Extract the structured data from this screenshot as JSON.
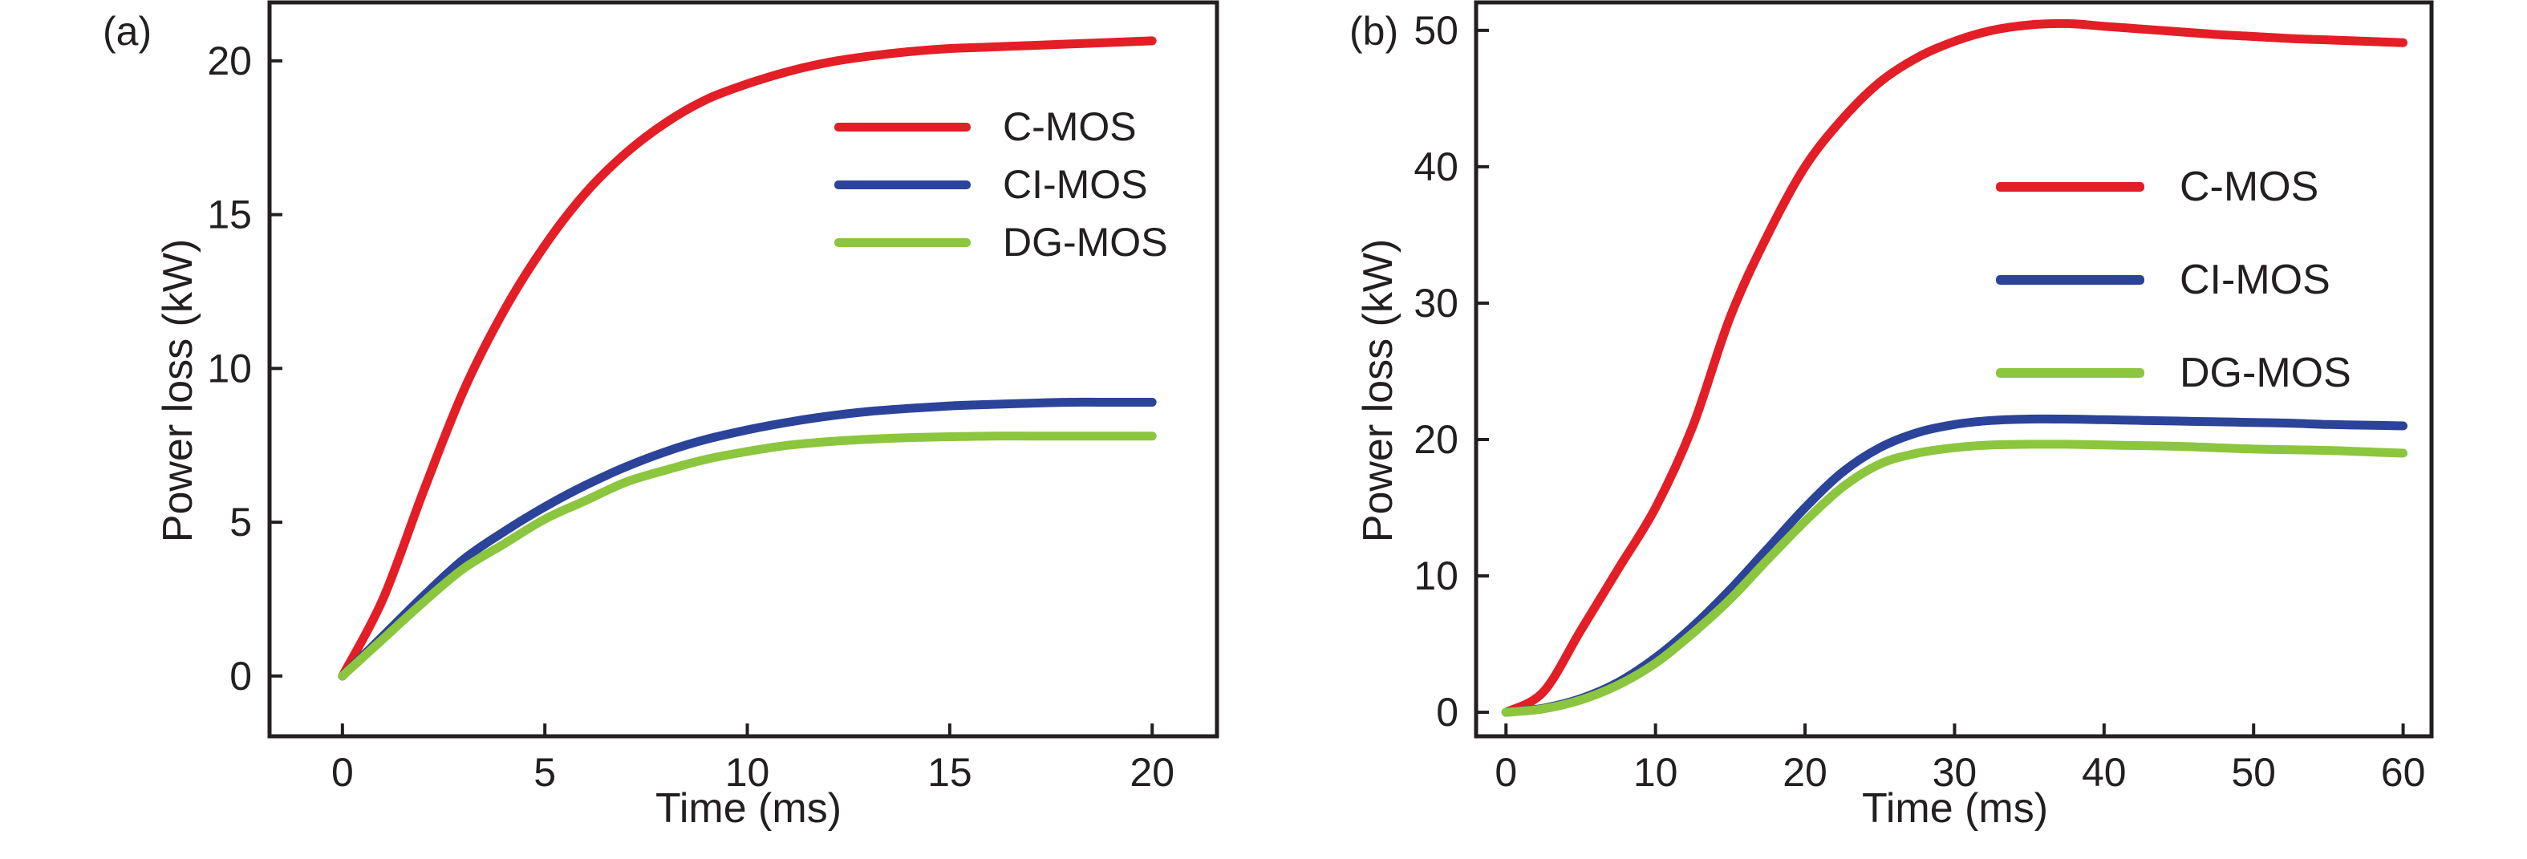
{
  "figure": {
    "background": "#ffffff",
    "axis_color": "#231f20",
    "text_color": "#231f20"
  },
  "chart_data": [
    {
      "type": "line",
      "panel_label": "(a)",
      "xlabel": "Time (ms)",
      "ylabel": "Power loss (kW)",
      "xlim": [
        -1.8,
        21.6
      ],
      "ylim": [
        -1.96,
        21.9
      ],
      "x_ticks": [
        0,
        5,
        10,
        15,
        20
      ],
      "y_ticks": [
        0,
        5,
        10,
        15,
        20
      ],
      "grid": false,
      "legend_position": "upper-right-inside",
      "x": [
        0,
        1,
        2,
        3,
        4,
        5,
        6,
        7,
        8,
        9,
        10,
        11,
        12,
        13,
        14,
        15,
        16,
        17,
        18,
        19,
        20
      ],
      "series": [
        {
          "name": "C-MOS",
          "color": "#e31e26",
          "values": [
            0,
            2.5,
            6.0,
            9.3,
            11.9,
            14.0,
            15.7,
            17.0,
            18.0,
            18.75,
            19.25,
            19.65,
            19.95,
            20.15,
            20.3,
            20.4,
            20.45,
            20.5,
            20.55,
            20.6,
            20.65
          ]
        },
        {
          "name": "CI-MOS",
          "color": "#2b4399",
          "values": [
            0,
            1.3,
            2.6,
            3.8,
            4.7,
            5.5,
            6.2,
            6.8,
            7.3,
            7.7,
            8.0,
            8.25,
            8.45,
            8.6,
            8.7,
            8.78,
            8.83,
            8.87,
            8.9,
            8.9,
            8.9
          ]
        },
        {
          "name": "DG-MOS",
          "color": "#8bc63e",
          "values": [
            0,
            1.2,
            2.4,
            3.5,
            4.3,
            5.1,
            5.7,
            6.3,
            6.7,
            7.05,
            7.3,
            7.5,
            7.62,
            7.7,
            7.75,
            7.78,
            7.8,
            7.8,
            7.8,
            7.8,
            7.8
          ]
        }
      ]
    },
    {
      "type": "line",
      "panel_label": "(b)",
      "xlabel": "Time (ms)",
      "ylabel": "Power loss (kW)",
      "xlim": [
        -2,
        61.9
      ],
      "ylim": [
        -1.76,
        52.05
      ],
      "x_ticks": [
        0,
        10,
        20,
        30,
        40,
        50,
        60
      ],
      "y_ticks": [
        0,
        10,
        20,
        30,
        40,
        50
      ],
      "grid": false,
      "legend_position": "upper-right-inside",
      "x": [
        0,
        2.5,
        5,
        7.5,
        10,
        12.5,
        15,
        17.5,
        20,
        22.5,
        25,
        27.5,
        30,
        32.5,
        35,
        37.5,
        40,
        42.5,
        45,
        47.5,
        50,
        52.5,
        55,
        57.5,
        60
      ],
      "series": [
        {
          "name": "C-MOS",
          "color": "#e31e26",
          "values": [
            0,
            1.5,
            6.0,
            10.5,
            15.0,
            21.0,
            29.0,
            35.0,
            40.0,
            43.5,
            46.2,
            48.0,
            49.2,
            50.0,
            50.4,
            50.5,
            50.3,
            50.1,
            49.9,
            49.7,
            49.55,
            49.4,
            49.3,
            49.2,
            49.1
          ]
        },
        {
          "name": "CI-MOS",
          "color": "#2b4399",
          "values": [
            0,
            0.3,
            1.0,
            2.2,
            4.0,
            6.3,
            9.0,
            12.0,
            15.0,
            17.6,
            19.4,
            20.5,
            21.1,
            21.4,
            21.5,
            21.5,
            21.45,
            21.4,
            21.35,
            21.3,
            21.25,
            21.2,
            21.1,
            21.05,
            21.0
          ]
        },
        {
          "name": "DG-MOS",
          "color": "#8bc63e",
          "values": [
            0,
            0.25,
            0.9,
            2.0,
            3.6,
            5.8,
            8.3,
            11.2,
            14.0,
            16.5,
            18.2,
            19.0,
            19.4,
            19.6,
            19.65,
            19.65,
            19.6,
            19.55,
            19.5,
            19.4,
            19.3,
            19.25,
            19.2,
            19.1,
            19.0
          ]
        }
      ]
    }
  ]
}
